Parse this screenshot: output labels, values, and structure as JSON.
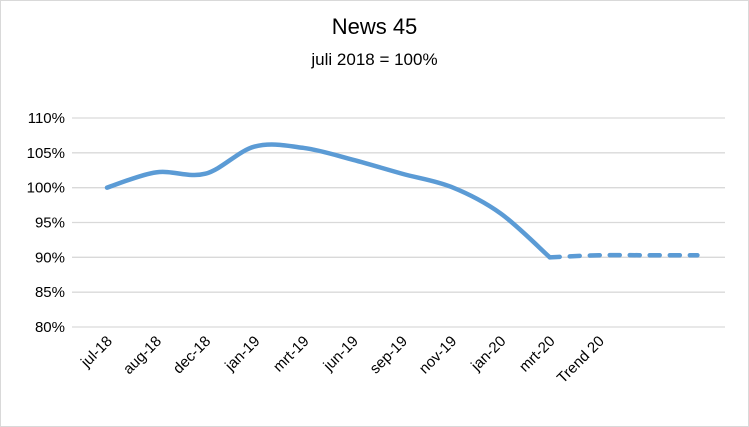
{
  "chart_data": {
    "type": "line",
    "title": "News 45",
    "subtitle": "juli 2018 = 100%",
    "categories": [
      "jul-18",
      "aug-18",
      "dec-18",
      "jan-19",
      "mrt-19",
      "jun-19",
      "sep-19",
      "nov-19",
      "jan-20",
      "mrt-20",
      "Trend 20",
      "",
      ""
    ],
    "series": [
      {
        "style": "solid",
        "color": "#5b9bd5",
        "values": [
          100,
          102.2,
          102,
          105.9,
          105.7,
          104,
          102,
          100.1,
          96.3,
          90,
          null,
          null,
          null
        ]
      },
      {
        "style": "dashed",
        "color": "#5b9bd5",
        "values": [
          null,
          null,
          null,
          null,
          null,
          null,
          null,
          null,
          null,
          90,
          90.3,
          90.3,
          90.3
        ]
      }
    ],
    "yticks": [
      "80%",
      "85%",
      "90%",
      "95%",
      "100%",
      "105%",
      "110%"
    ],
    "ylim": [
      80,
      110
    ],
    "grid": true,
    "smooth": true
  }
}
